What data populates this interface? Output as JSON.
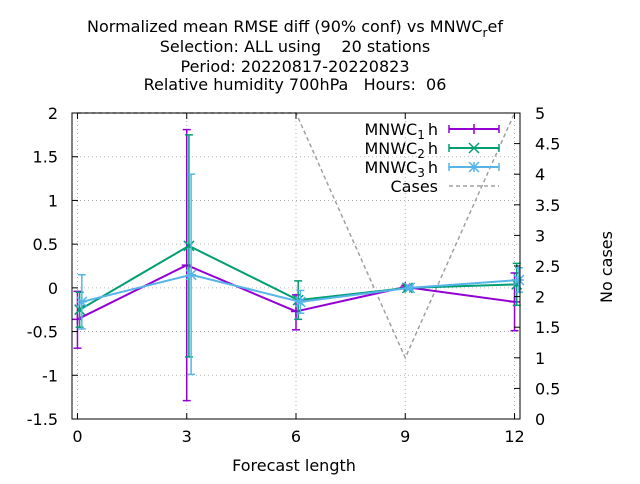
{
  "chart_data": {
    "type": "line",
    "title_lines": [
      "Normalized mean RMSE diff (90% conf) vs MNWC",
      "Selection: ALL using    20 stations",
      "Period: 20220817-20220823",
      "Relative humidity 700hPa   Hours:  06"
    ],
    "title_sub": "r",
    "title_tail": "ef",
    "xlabel": "Forecast length",
    "ylabel": "",
    "y2label": "No cases",
    "x_ticks": [
      0,
      3,
      6,
      9,
      12
    ],
    "y_ticks": [
      "2",
      "1.5",
      "1",
      "0.5",
      "0",
      "-0.5",
      "-1",
      "-1.5"
    ],
    "y2_ticks": [
      "5",
      "4.5",
      "4",
      "3.5",
      "3",
      "2.5",
      "2",
      "1.5",
      "1",
      "0.5",
      "0"
    ],
    "xlim": [
      -0.15,
      12.15
    ],
    "ylim": [
      -1.5,
      2
    ],
    "y2lim": [
      0,
      5
    ],
    "grid": true,
    "legend_position": "top-right",
    "series": [
      {
        "name_main": "MNWC",
        "name_sub": "1",
        "name_tail": "h",
        "color": "#9400d3",
        "marker": "plus",
        "axis": "y",
        "points": [
          {
            "x": 0,
            "y": -0.36,
            "low": -0.69,
            "high": -0.04
          },
          {
            "x": 3,
            "y": 0.26,
            "low": -1.29,
            "high": 1.81
          },
          {
            "x": 6,
            "y": -0.27,
            "low": -0.48,
            "high": -0.08
          },
          {
            "x": 9,
            "y": 0.01,
            "low": -0.01,
            "high": 0.03
          },
          {
            "x": 12,
            "y": -0.16,
            "low": -0.49,
            "high": 0.17
          }
        ]
      },
      {
        "name_main": "MNWC",
        "name_sub": "2",
        "name_tail": "h",
        "color": "#009e73",
        "marker": "cross",
        "axis": "y",
        "points": [
          {
            "x": 0,
            "y": -0.25,
            "low": -0.45,
            "high": -0.05
          },
          {
            "x": 3,
            "y": 0.48,
            "low": -0.79,
            "high": 1.75
          },
          {
            "x": 6,
            "y": -0.14,
            "low": -0.36,
            "high": 0.08
          },
          {
            "x": 9,
            "y": 0.0,
            "low": -0.02,
            "high": 0.02
          },
          {
            "x": 12,
            "y": 0.04,
            "low": -0.2,
            "high": 0.28
          }
        ]
      },
      {
        "name_main": "MNWC",
        "name_sub": "3",
        "name_tail": "h",
        "color": "#56b4e9",
        "marker": "star",
        "axis": "y",
        "points": [
          {
            "x": 0,
            "y": -0.16,
            "low": -0.47,
            "high": 0.15
          },
          {
            "x": 3,
            "y": 0.15,
            "low": -0.99,
            "high": 1.3
          },
          {
            "x": 6,
            "y": -0.16,
            "low": -0.29,
            "high": -0.03
          },
          {
            "x": 9,
            "y": 0.0,
            "low": -0.02,
            "high": 0.02
          },
          {
            "x": 12,
            "y": 0.09,
            "low": -0.05,
            "high": 0.23
          }
        ]
      },
      {
        "name": "Cases",
        "color": "#a0a0a0",
        "style": "dashed",
        "axis": "y2",
        "points": [
          {
            "x": 0,
            "y": 5
          },
          {
            "x": 3,
            "y": 5
          },
          {
            "x": 6,
            "y": 5
          },
          {
            "x": 9,
            "y": 1
          },
          {
            "x": 12,
            "y": 5
          }
        ]
      }
    ]
  }
}
